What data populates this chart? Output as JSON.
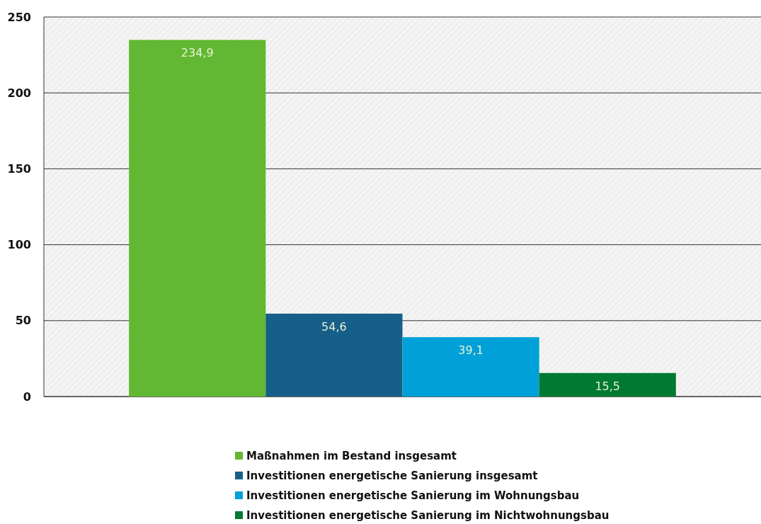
{
  "chart_data": {
    "type": "bar",
    "categories": [
      null
    ],
    "series": [
      {
        "name": "Maßnahmen im Bestand insgesamt",
        "color": "#62b832",
        "values": [
          234.9
        ],
        "value_labels": [
          "234,9"
        ]
      },
      {
        "name": "Investitionen energetische Sanierung insgesamt",
        "color": "#155f88",
        "values": [
          54.6
        ],
        "value_labels": [
          "54,6"
        ]
      },
      {
        "name": "Investitionen energetische Sanierung im  Wohnungsbau",
        "color": "#00a0d8",
        "values": [
          39.1
        ],
        "value_labels": [
          "39,1"
        ]
      },
      {
        "name": "Investitionen energetische Sanierung im  Nichtwohnungsbau",
        "color": "#007a32",
        "values": [
          15.5
        ],
        "value_labels": [
          "15,5"
        ]
      }
    ],
    "ylim": [
      0,
      250
    ],
    "yticks": [
      0,
      50,
      100,
      150,
      200,
      250
    ],
    "grid": "y",
    "legend": "bottom"
  }
}
